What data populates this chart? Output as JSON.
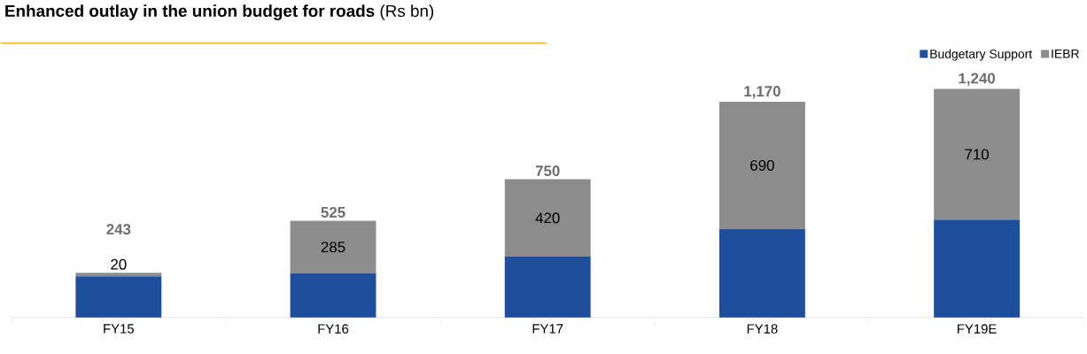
{
  "chart_data": {
    "type": "bar",
    "stacked": true,
    "title": "**Enhanced outlay in the union budget for roads** (Rs bn)",
    "categories": [
      "FY15",
      "FY16",
      "FY17",
      "FY18",
      "FY19E"
    ],
    "series": [
      {
        "name": "Budgetary Support",
        "color": "#1f4e9c",
        "values": [
          223,
          240,
          330,
          480,
          530
        ]
      },
      {
        "name": "IEBR",
        "color": "#8c8c8c",
        "values": [
          20,
          285,
          420,
          690,
          710
        ],
        "value_labels": [
          "20",
          "285",
          "420",
          "690",
          "710"
        ]
      }
    ],
    "totals": [
      "243",
      "525",
      "750",
      "1,170",
      "1,240"
    ],
    "legend": "top right"
  }
}
